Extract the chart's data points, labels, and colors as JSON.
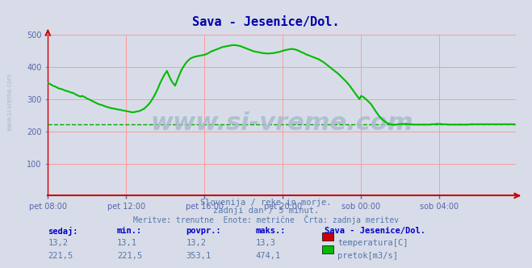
{
  "title": "Sava - Jesenice/Dol.",
  "title_color": "#0000aa",
  "bg_color": "#d8dce8",
  "plot_bg_color": "#d8dce8",
  "grid_color_h": "#ff9999",
  "grid_color_v": "#ff9999",
  "avg_line_color": "#00aa00",
  "avg_line_value": 221.5,
  "xaxis_color": "#cc0000",
  "yaxis_color": "#cc0000",
  "line_color": "#00bb00",
  "line_width": 1.5,
  "xlabel_color": "#5566aa",
  "ylabel_color": "#5566aa",
  "tick_labels": [
    "pet 08:00",
    "pet 12:00",
    "pet 16:00",
    "pet 20:00",
    "sob 00:00",
    "sob 04:00"
  ],
  "tick_positions": [
    0,
    48,
    96,
    144,
    192,
    240
  ],
  "yticks": [
    0,
    100,
    200,
    300,
    400,
    500
  ],
  "ylim": [
    0,
    500
  ],
  "xlim": [
    0,
    287
  ],
  "subtitle1": "Slovenija / reke in morje.",
  "subtitle2": "zadnji dan / 5 minut.",
  "subtitle3": "Meritve: trenutne  Enote: metrične  Črta: zadnja meritev",
  "subtitle_color": "#5577aa",
  "watermark": "www.si-vreme.com",
  "watermark_color": "#aabbcc",
  "left_label": "www.si-vreme.com",
  "table_headers": [
    "sedaj:",
    "min.:",
    "povpr.:",
    "maks.:"
  ],
  "table_station": "Sava - Jesenice/Dol.",
  "table_data": [
    [
      "13,2",
      "13,1",
      "13,2",
      "13,3"
    ],
    [
      "221,5",
      "221,5",
      "353,1",
      "474,1"
    ]
  ],
  "legend_items": [
    "temperatura[C]",
    "pretok[m3/s]"
  ],
  "legend_colors": [
    "#cc0000",
    "#00bb00"
  ],
  "flow_data": [
    350,
    348,
    345,
    342,
    340,
    338,
    335,
    333,
    332,
    330,
    328,
    326,
    325,
    323,
    321,
    320,
    318,
    315,
    312,
    310,
    308,
    310,
    308,
    305,
    302,
    300,
    297,
    295,
    292,
    290,
    287,
    285,
    283,
    282,
    280,
    278,
    276,
    275,
    273,
    272,
    271,
    270,
    269,
    268,
    267,
    266,
    265,
    264,
    263,
    262,
    261,
    260,
    259,
    260,
    261,
    262,
    263,
    265,
    268,
    270,
    275,
    280,
    285,
    292,
    300,
    308,
    318,
    328,
    340,
    352,
    362,
    372,
    380,
    388,
    376,
    365,
    355,
    348,
    342,
    355,
    368,
    380,
    392,
    400,
    408,
    415,
    420,
    425,
    428,
    430,
    432,
    433,
    434,
    435,
    436,
    437,
    438,
    440,
    442,
    445,
    448,
    450,
    452,
    454,
    456,
    458,
    460,
    462,
    463,
    464,
    465,
    466,
    467,
    468,
    468,
    468,
    467,
    466,
    465,
    463,
    461,
    459,
    457,
    455,
    453,
    451,
    449,
    448,
    447,
    446,
    445,
    444,
    443,
    443,
    442,
    442,
    442,
    443,
    443,
    444,
    445,
    446,
    447,
    449,
    450,
    452,
    453,
    454,
    455,
    456,
    456,
    455,
    454,
    452,
    450,
    447,
    445,
    443,
    440,
    438,
    436,
    434,
    432,
    430,
    428,
    426,
    424,
    421,
    418,
    415,
    411,
    407,
    403,
    399,
    395,
    391,
    387,
    383,
    379,
    374,
    369,
    364,
    359,
    354,
    348,
    342,
    335,
    328,
    321,
    314,
    307,
    300,
    310,
    308,
    304,
    300,
    295,
    290,
    285,
    278,
    270,
    262,
    255,
    248,
    242,
    237,
    233,
    229,
    226,
    224,
    222,
    221,
    220,
    221,
    221,
    222,
    222,
    223,
    223,
    223,
    223,
    222,
    222,
    222,
    221,
    221,
    221,
    221,
    221,
    221,
    221,
    221,
    221,
    221,
    221,
    222,
    222,
    222,
    223,
    223,
    223,
    223,
    222,
    222,
    222,
    221,
    221,
    221,
    221,
    221,
    221,
    221,
    221,
    221,
    221,
    221,
    221,
    221,
    221,
    222,
    222,
    222,
    222,
    222,
    222,
    222,
    222,
    222,
    222,
    222,
    222,
    222,
    222,
    222,
    222,
    222,
    222,
    222,
    222,
    222,
    222,
    222,
    222,
    222,
    222,
    222,
    222
  ]
}
